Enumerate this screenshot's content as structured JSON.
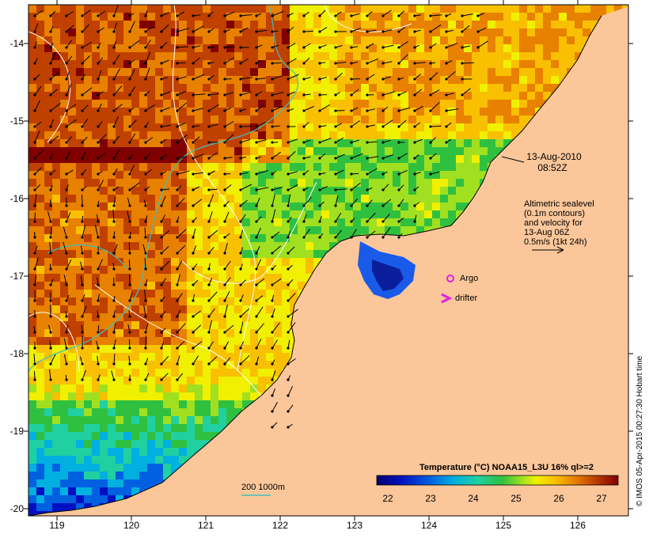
{
  "map": {
    "lon_ticks": [
      "119",
      "120",
      "121",
      "122",
      "123",
      "124",
      "125",
      "126"
    ],
    "lat_ticks": [
      "-14",
      "-15",
      "-16",
      "-17",
      "-18",
      "-19",
      "-20"
    ],
    "timestamp_date": "13-Aug-2010",
    "timestamp_time": "08:52Z",
    "altimetry_note": [
      "Altimetric sealevel",
      "(0.1m contours)",
      "and velocity for",
      "13-Aug 06Z",
      "0.5m/s (1kt 24h)"
    ],
    "argo_label": "Argo",
    "drifter_label": "drifter",
    "isobath_label": "200  1000m",
    "colorbar_title": "Temperature (°C) NOAA15_L3U 16% ql>=2",
    "colorbar_ticks": [
      "22",
      "23",
      "24",
      "25",
      "26",
      "27"
    ],
    "credit": "© IMOS 05-Apr-2015 00:27:30 Hobart time",
    "colors": {
      "land": "#FBC79A",
      "contour": "#FFFFFF",
      "isobath": "#40C0C0",
      "marker": "#E020E0",
      "vector": "#000000"
    }
  }
}
